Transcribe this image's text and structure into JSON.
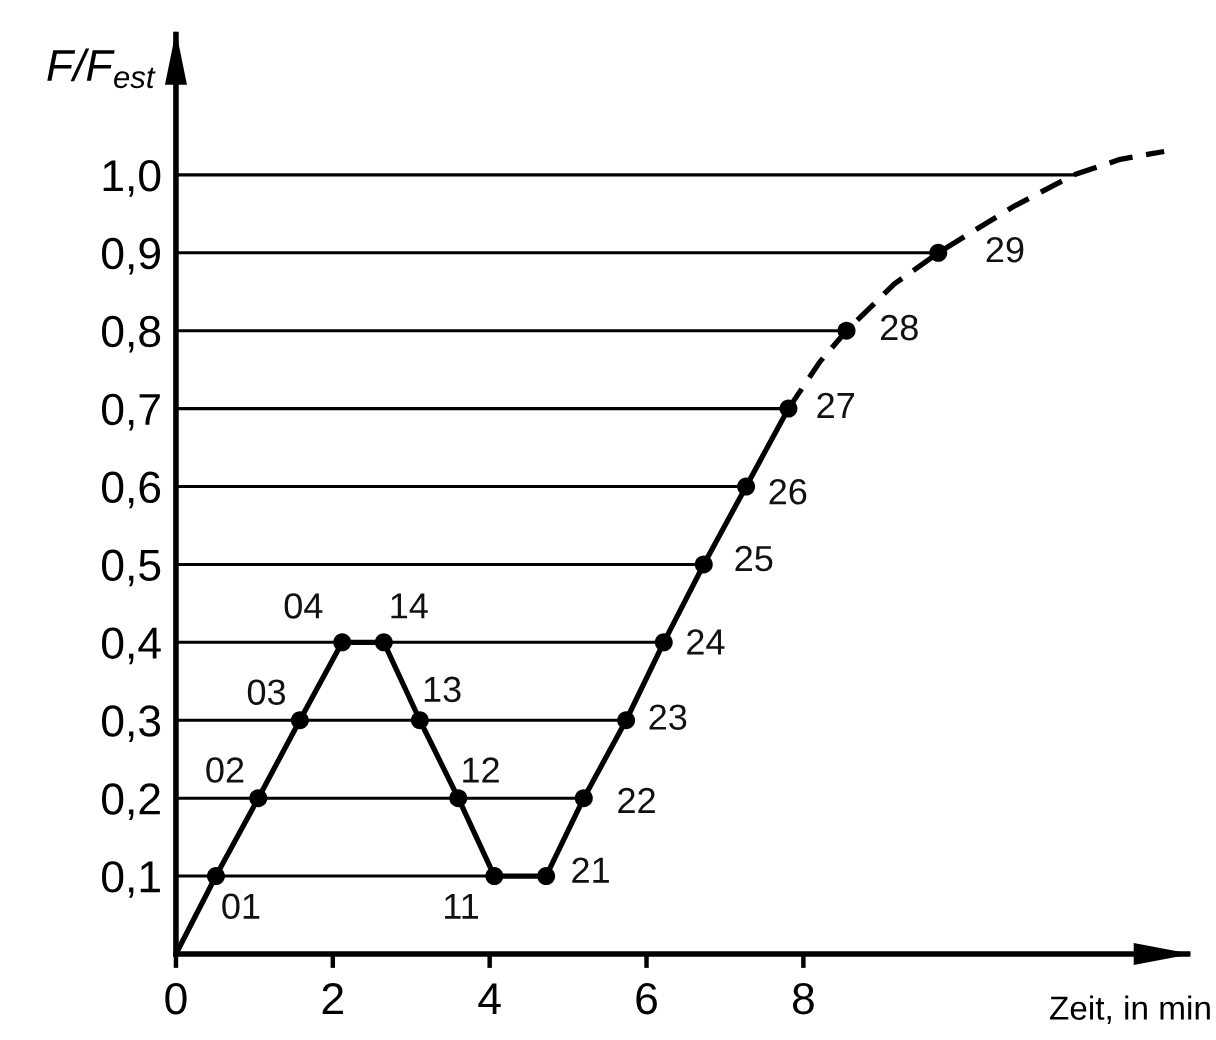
{
  "chart_data": {
    "type": "line",
    "xlabel": "Zeit, in min",
    "ylabel": "F/F$_{est}$",
    "xlim": [
      0,
      12.9
    ],
    "ylim": [
      0,
      1.18
    ],
    "xticks": [
      0,
      2,
      4,
      6,
      8
    ],
    "yticks": [
      {
        "value": 0.1,
        "label": "0,1"
      },
      {
        "value": 0.2,
        "label": "0,2"
      },
      {
        "value": 0.3,
        "label": "0,3"
      },
      {
        "value": 0.4,
        "label": "0,4"
      },
      {
        "value": 0.5,
        "label": "0,5"
      },
      {
        "value": 0.6,
        "label": "0,6"
      },
      {
        "value": 0.7,
        "label": "0,7"
      },
      {
        "value": 0.8,
        "label": "0,8"
      },
      {
        "value": 0.9,
        "label": "0,9"
      },
      {
        "value": 1.0,
        "label": "1,0"
      }
    ],
    "grid": "y",
    "series": [
      {
        "color": "#000000",
        "line_style": "solid",
        "marker": "none",
        "x": [
          0,
          0.51,
          1.05,
          1.58,
          2.12,
          2.65,
          3.11,
          3.6,
          4.06,
          4.72,
          5.2,
          5.74,
          6.22,
          6.73,
          7.27,
          7.81
        ],
        "values": [
          0,
          0.1,
          0.2,
          0.3,
          0.4,
          0.4,
          0.3,
          0.2,
          0.1,
          0.1,
          0.2,
          0.3,
          0.4,
          0.5,
          0.6,
          0.7
        ]
      },
      {
        "color": "#000000",
        "line_style": "dashed",
        "marker": "none",
        "x": [
          7.81,
          8.21,
          8.55,
          9.16,
          9.72,
          10.69,
          11.45,
          12.04,
          12.6
        ],
        "values": [
          0.7,
          0.76,
          0.8,
          0.86,
          0.9,
          0.96,
          1.0,
          1.02,
          1.03
        ]
      },
      {
        "type": "scatter",
        "color": "#000000",
        "marker": "circle",
        "x": [
          0.51,
          1.05,
          1.58,
          2.12,
          2.65,
          3.11,
          3.6,
          4.06,
          4.72,
          5.2,
          5.74,
          6.22,
          6.73,
          7.27,
          7.81,
          8.55,
          9.72
        ],
        "values": [
          0.1,
          0.2,
          0.3,
          0.4,
          0.4,
          0.3,
          0.2,
          0.1,
          0.1,
          0.2,
          0.3,
          0.4,
          0.5,
          0.6,
          0.7,
          0.8,
          0.9
        ]
      }
    ],
    "annotations": [
      {
        "text": "01",
        "x": 0.51,
        "y": 0.1
      },
      {
        "text": "02",
        "x": 1.05,
        "y": 0.2
      },
      {
        "text": "03",
        "x": 1.58,
        "y": 0.3
      },
      {
        "text": "04",
        "x": 2.12,
        "y": 0.4
      },
      {
        "text": "14",
        "x": 2.65,
        "y": 0.4
      },
      {
        "text": "13",
        "x": 3.11,
        "y": 0.3
      },
      {
        "text": "12",
        "x": 3.6,
        "y": 0.2
      },
      {
        "text": "11",
        "x": 4.06,
        "y": 0.1
      },
      {
        "text": "21",
        "x": 4.72,
        "y": 0.1
      },
      {
        "text": "22",
        "x": 5.2,
        "y": 0.2
      },
      {
        "text": "23",
        "x": 5.74,
        "y": 0.3
      },
      {
        "text": "24",
        "x": 6.22,
        "y": 0.4
      },
      {
        "text": "25",
        "x": 6.73,
        "y": 0.5
      },
      {
        "text": "26",
        "x": 7.27,
        "y": 0.6
      },
      {
        "text": "27",
        "x": 7.81,
        "y": 0.7
      },
      {
        "text": "28",
        "x": 8.55,
        "y": 0.8
      },
      {
        "text": "29",
        "x": 9.72,
        "y": 0.9
      }
    ]
  }
}
